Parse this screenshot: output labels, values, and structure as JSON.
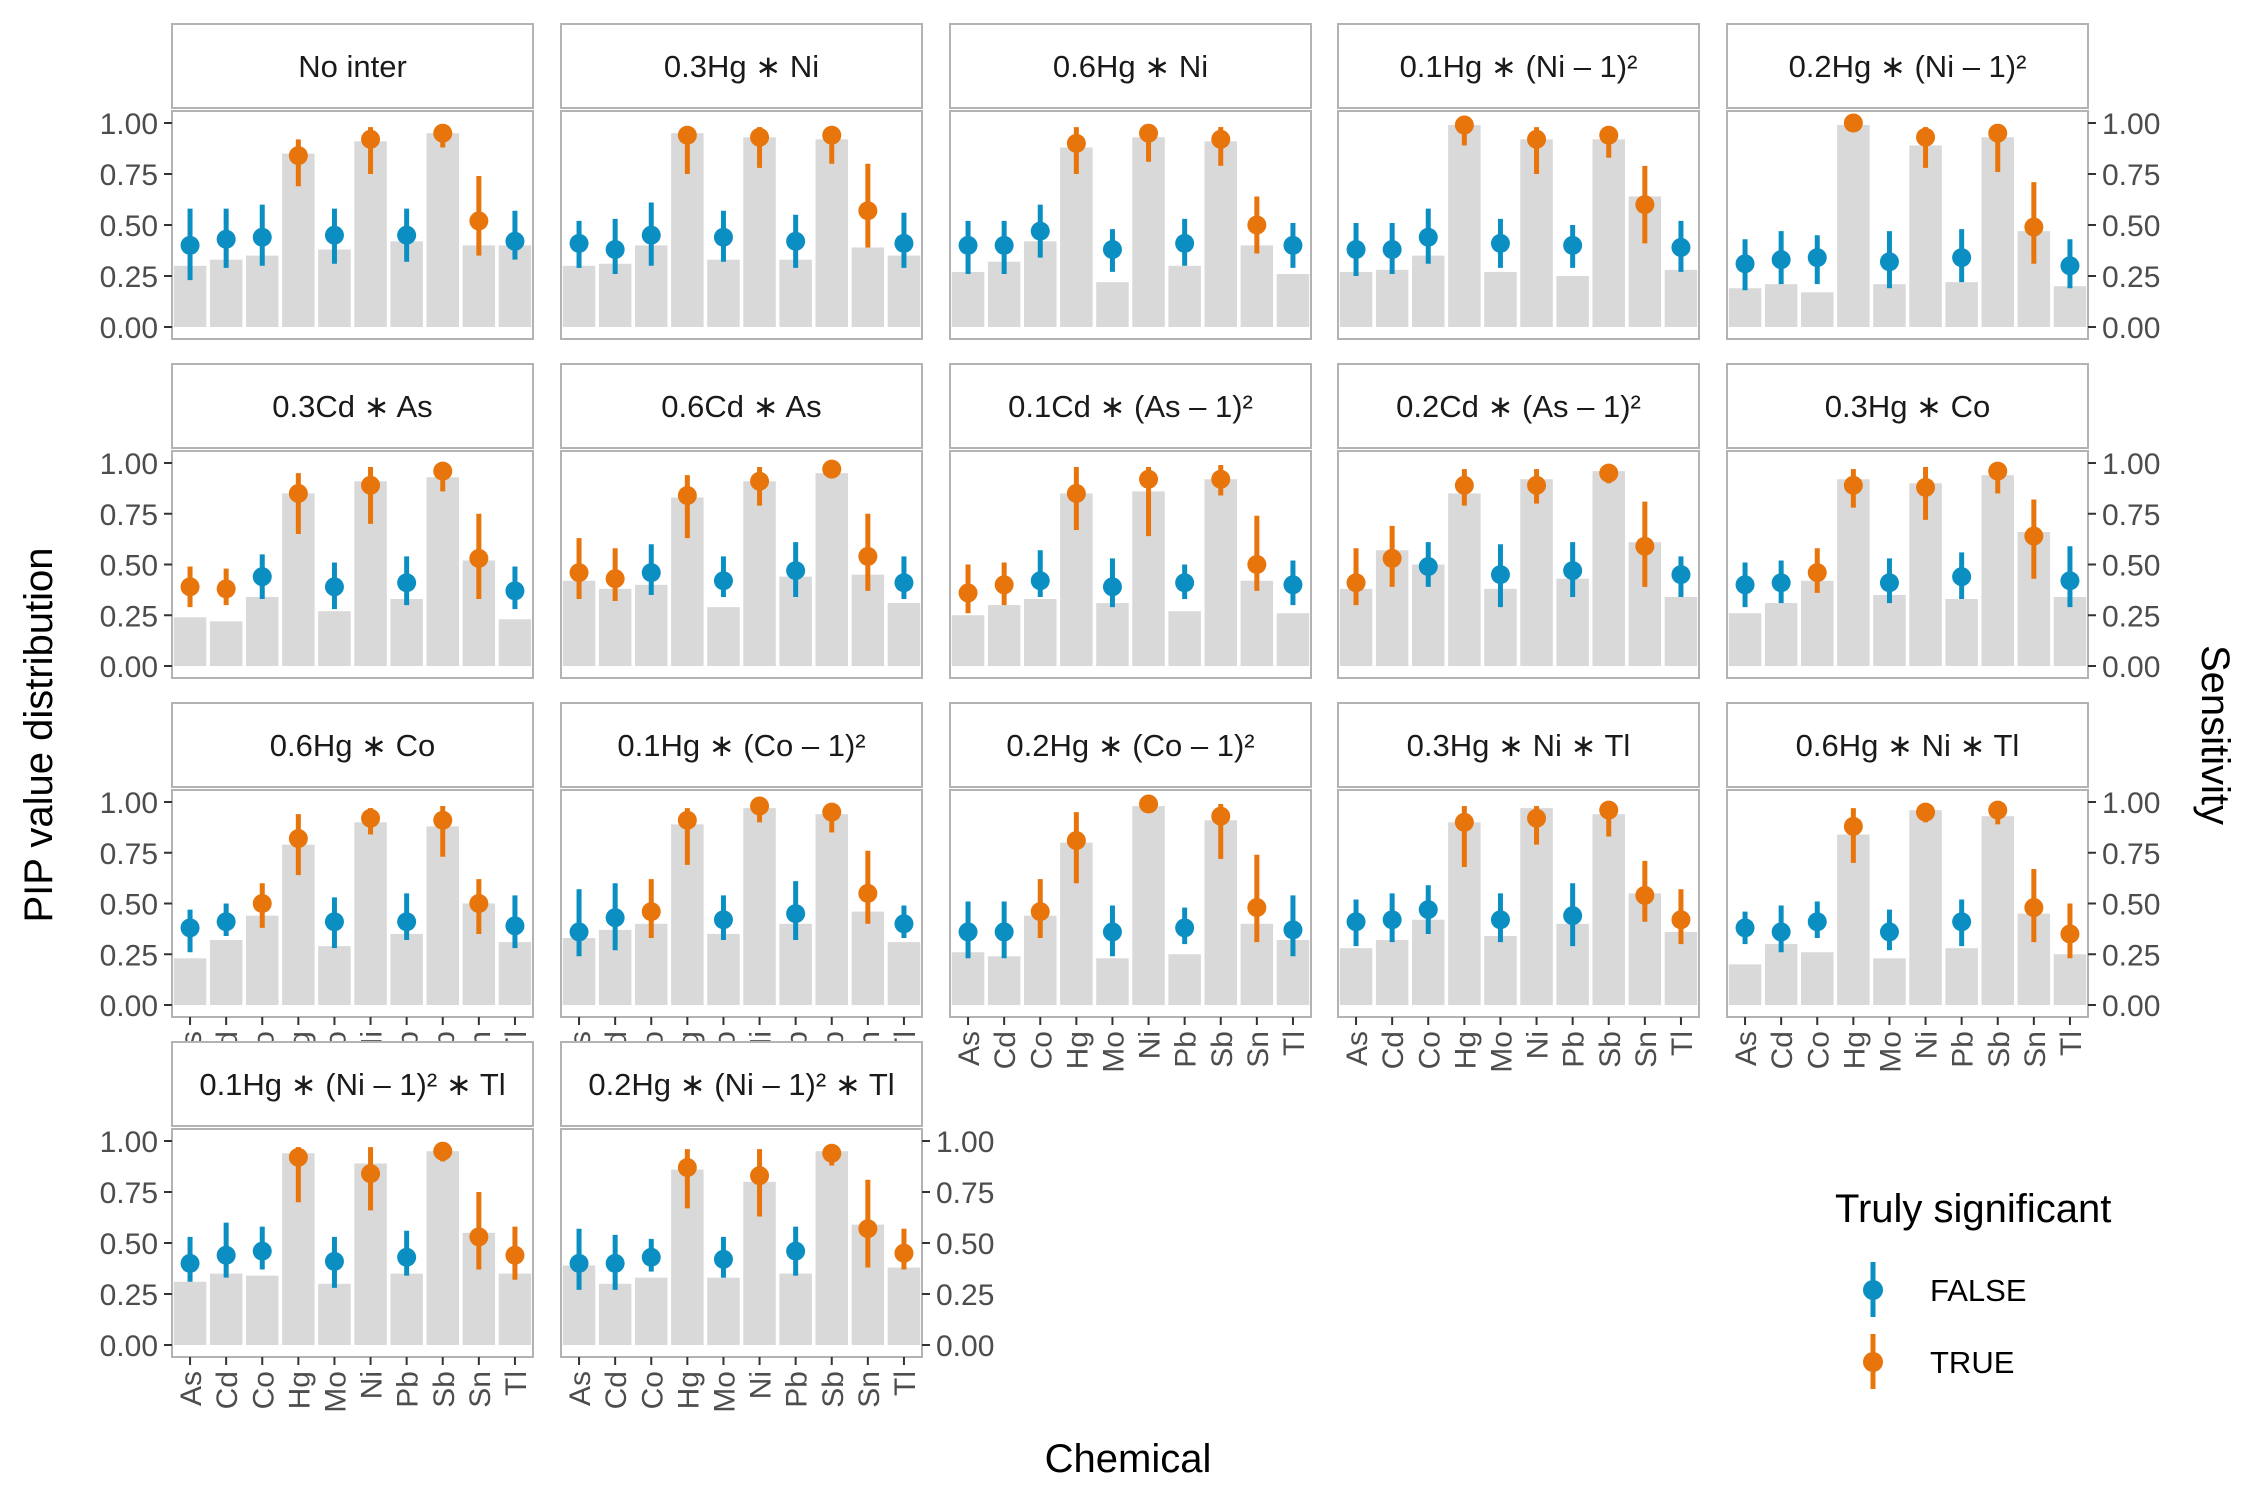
{
  "chart_data": {
    "type": "bar",
    "title": "",
    "xlabel": "Chemical",
    "ylabel": "PIP value distribution",
    "ylabel_right": "Sensitivity",
    "ylim": [
      0,
      1
    ],
    "yticks": [
      "0.00",
      "0.25",
      "0.50",
      "0.75",
      "1.00"
    ],
    "categories": [
      "As",
      "Cd",
      "Co",
      "Hg",
      "Mo",
      "Ni",
      "Pb",
      "Sb",
      "Sn",
      "Tl"
    ],
    "legend": {
      "title": "Truly significant",
      "position": "right",
      "entries": [
        {
          "label": "FALSE",
          "color": "#0b8fc3"
        },
        {
          "label": "TRUE",
          "color": "#e8740c"
        }
      ]
    },
    "colors": {
      "false": "#0b8fc3",
      "true": "#e8740c",
      "bar": "#d9d9d9",
      "strip_fill": "#ffffff",
      "panel_border": "#b3b3b3"
    },
    "panels": [
      {
        "label": "No inter",
        "sig": [
          0,
          0,
          0,
          1,
          0,
          1,
          0,
          1,
          1,
          0
        ],
        "sensitivity": [
          0.3,
          0.33,
          0.35,
          0.85,
          0.38,
          0.91,
          0.42,
          0.95,
          0.4,
          0.4
        ],
        "median": [
          0.4,
          0.43,
          0.44,
          0.84,
          0.45,
          0.92,
          0.45,
          0.95,
          0.52,
          0.42
        ],
        "low": [
          0.23,
          0.29,
          0.3,
          0.69,
          0.31,
          0.75,
          0.32,
          0.88,
          0.35,
          0.33
        ],
        "high": [
          0.58,
          0.58,
          0.6,
          0.92,
          0.58,
          0.98,
          0.58,
          0.98,
          0.74,
          0.57
        ]
      },
      {
        "label": "0.3Hg ∗ Ni",
        "sig": [
          0,
          0,
          0,
          1,
          0,
          1,
          0,
          1,
          1,
          0
        ],
        "sensitivity": [
          0.3,
          0.31,
          0.4,
          0.95,
          0.33,
          0.93,
          0.33,
          0.92,
          0.39,
          0.35
        ],
        "median": [
          0.41,
          0.38,
          0.45,
          0.94,
          0.44,
          0.93,
          0.42,
          0.94,
          0.57,
          0.41
        ],
        "low": [
          0.29,
          0.26,
          0.3,
          0.75,
          0.32,
          0.78,
          0.29,
          0.8,
          0.39,
          0.29
        ],
        "high": [
          0.52,
          0.53,
          0.61,
          0.98,
          0.57,
          0.98,
          0.55,
          0.98,
          0.8,
          0.56
        ]
      },
      {
        "label": "0.6Hg ∗ Ni",
        "sig": [
          0,
          0,
          0,
          1,
          0,
          1,
          0,
          1,
          1,
          0
        ],
        "sensitivity": [
          0.27,
          0.32,
          0.42,
          0.88,
          0.22,
          0.93,
          0.3,
          0.91,
          0.4,
          0.26
        ],
        "median": [
          0.4,
          0.4,
          0.47,
          0.9,
          0.38,
          0.95,
          0.41,
          0.92,
          0.5,
          0.4
        ],
        "low": [
          0.26,
          0.26,
          0.34,
          0.75,
          0.27,
          0.81,
          0.3,
          0.79,
          0.36,
          0.29
        ],
        "high": [
          0.52,
          0.52,
          0.6,
          0.98,
          0.48,
          0.98,
          0.53,
          0.98,
          0.64,
          0.51
        ]
      },
      {
        "label": "0.1Hg ∗ (Ni – 1)²",
        "sig": [
          0,
          0,
          0,
          1,
          0,
          1,
          0,
          1,
          1,
          0
        ],
        "sensitivity": [
          0.27,
          0.28,
          0.35,
          0.99,
          0.27,
          0.92,
          0.25,
          0.92,
          0.64,
          0.28
        ],
        "median": [
          0.38,
          0.38,
          0.44,
          0.99,
          0.41,
          0.92,
          0.4,
          0.94,
          0.6,
          0.39
        ],
        "low": [
          0.25,
          0.26,
          0.31,
          0.89,
          0.29,
          0.75,
          0.29,
          0.83,
          0.41,
          0.27
        ],
        "high": [
          0.51,
          0.51,
          0.58,
          1.0,
          0.53,
          0.98,
          0.5,
          0.98,
          0.79,
          0.52
        ]
      },
      {
        "label": "0.2Hg ∗ (Ni – 1)²",
        "sig": [
          0,
          0,
          0,
          1,
          0,
          1,
          0,
          1,
          1,
          0
        ],
        "sensitivity": [
          0.19,
          0.21,
          0.17,
          0.99,
          0.21,
          0.89,
          0.22,
          0.93,
          0.47,
          0.2
        ],
        "median": [
          0.31,
          0.33,
          0.34,
          1.0,
          0.32,
          0.93,
          0.34,
          0.95,
          0.49,
          0.3
        ],
        "low": [
          0.18,
          0.21,
          0.21,
          0.99,
          0.19,
          0.78,
          0.22,
          0.76,
          0.31,
          0.19
        ],
        "high": [
          0.43,
          0.47,
          0.45,
          1.0,
          0.47,
          0.98,
          0.48,
          0.98,
          0.71,
          0.43
        ]
      },
      {
        "label": "0.3Cd ∗ As",
        "sig": [
          1,
          1,
          0,
          1,
          0,
          1,
          0,
          1,
          1,
          0
        ],
        "sensitivity": [
          0.24,
          0.22,
          0.34,
          0.85,
          0.27,
          0.91,
          0.33,
          0.93,
          0.52,
          0.23
        ],
        "median": [
          0.39,
          0.38,
          0.44,
          0.85,
          0.39,
          0.89,
          0.41,
          0.96,
          0.53,
          0.37
        ],
        "low": [
          0.29,
          0.3,
          0.33,
          0.65,
          0.28,
          0.7,
          0.3,
          0.86,
          0.33,
          0.28
        ],
        "high": [
          0.49,
          0.48,
          0.55,
          0.95,
          0.51,
          0.98,
          0.54,
          0.99,
          0.75,
          0.49
        ]
      },
      {
        "label": "0.6Cd ∗ As",
        "sig": [
          1,
          1,
          0,
          1,
          0,
          1,
          0,
          1,
          1,
          0
        ],
        "sensitivity": [
          0.42,
          0.38,
          0.4,
          0.83,
          0.29,
          0.91,
          0.44,
          0.95,
          0.45,
          0.31
        ],
        "median": [
          0.46,
          0.43,
          0.46,
          0.84,
          0.42,
          0.91,
          0.47,
          0.97,
          0.54,
          0.41
        ],
        "low": [
          0.33,
          0.32,
          0.35,
          0.63,
          0.34,
          0.79,
          0.34,
          0.93,
          0.37,
          0.33
        ],
        "high": [
          0.63,
          0.58,
          0.6,
          0.94,
          0.54,
          0.98,
          0.61,
          0.99,
          0.75,
          0.54
        ]
      },
      {
        "label": "0.1Cd ∗ (As – 1)²",
        "sig": [
          1,
          1,
          0,
          1,
          0,
          1,
          0,
          1,
          1,
          0
        ],
        "sensitivity": [
          0.25,
          0.3,
          0.33,
          0.85,
          0.31,
          0.86,
          0.27,
          0.92,
          0.42,
          0.26
        ],
        "median": [
          0.36,
          0.4,
          0.42,
          0.85,
          0.39,
          0.92,
          0.41,
          0.92,
          0.5,
          0.4
        ],
        "low": [
          0.26,
          0.3,
          0.34,
          0.67,
          0.29,
          0.64,
          0.33,
          0.84,
          0.37,
          0.3
        ],
        "high": [
          0.5,
          0.51,
          0.57,
          0.98,
          0.53,
          0.98,
          0.5,
          0.99,
          0.74,
          0.52
        ]
      },
      {
        "label": "0.2Cd ∗ (As – 1)²",
        "sig": [
          1,
          1,
          0,
          1,
          0,
          1,
          0,
          1,
          1,
          0
        ],
        "sensitivity": [
          0.38,
          0.57,
          0.5,
          0.85,
          0.38,
          0.92,
          0.43,
          0.96,
          0.61,
          0.34
        ],
        "median": [
          0.41,
          0.53,
          0.49,
          0.89,
          0.45,
          0.89,
          0.47,
          0.95,
          0.59,
          0.45
        ],
        "low": [
          0.3,
          0.39,
          0.39,
          0.79,
          0.29,
          0.8,
          0.34,
          0.9,
          0.39,
          0.34
        ],
        "high": [
          0.58,
          0.69,
          0.61,
          0.97,
          0.6,
          0.97,
          0.61,
          0.98,
          0.81,
          0.54
        ]
      },
      {
        "label": "0.3Hg ∗ Co",
        "sig": [
          0,
          0,
          1,
          1,
          0,
          1,
          0,
          1,
          1,
          0
        ],
        "sensitivity": [
          0.26,
          0.31,
          0.42,
          0.92,
          0.35,
          0.9,
          0.33,
          0.94,
          0.66,
          0.34
        ],
        "median": [
          0.4,
          0.41,
          0.46,
          0.89,
          0.41,
          0.88,
          0.44,
          0.96,
          0.64,
          0.42
        ],
        "low": [
          0.29,
          0.31,
          0.36,
          0.78,
          0.31,
          0.72,
          0.33,
          0.85,
          0.43,
          0.29
        ],
        "high": [
          0.51,
          0.52,
          0.58,
          0.97,
          0.53,
          0.98,
          0.56,
          0.98,
          0.82,
          0.59
        ]
      },
      {
        "label": "0.6Hg ∗ Co",
        "sig": [
          0,
          0,
          1,
          1,
          0,
          1,
          0,
          1,
          1,
          0
        ],
        "sensitivity": [
          0.23,
          0.32,
          0.44,
          0.79,
          0.29,
          0.9,
          0.35,
          0.88,
          0.5,
          0.31
        ],
        "median": [
          0.38,
          0.41,
          0.5,
          0.82,
          0.41,
          0.92,
          0.41,
          0.91,
          0.5,
          0.39
        ],
        "low": [
          0.26,
          0.34,
          0.38,
          0.64,
          0.28,
          0.84,
          0.32,
          0.73,
          0.35,
          0.28
        ],
        "high": [
          0.47,
          0.5,
          0.6,
          0.94,
          0.53,
          0.97,
          0.55,
          0.98,
          0.62,
          0.54
        ]
      },
      {
        "label": "0.1Hg ∗ (Co – 1)²",
        "sig": [
          0,
          0,
          1,
          1,
          0,
          1,
          0,
          1,
          1,
          0
        ],
        "sensitivity": [
          0.33,
          0.37,
          0.4,
          0.89,
          0.35,
          0.97,
          0.4,
          0.94,
          0.46,
          0.31
        ],
        "median": [
          0.36,
          0.43,
          0.46,
          0.91,
          0.42,
          0.98,
          0.45,
          0.95,
          0.55,
          0.4
        ],
        "low": [
          0.24,
          0.27,
          0.33,
          0.69,
          0.32,
          0.9,
          0.32,
          0.85,
          0.4,
          0.33
        ],
        "high": [
          0.57,
          0.6,
          0.62,
          0.97,
          0.54,
          0.99,
          0.61,
          0.98,
          0.76,
          0.49
        ]
      },
      {
        "label": "0.2Hg ∗ (Co – 1)²",
        "sig": [
          0,
          0,
          1,
          1,
          0,
          1,
          0,
          1,
          1,
          0
        ],
        "sensitivity": [
          0.26,
          0.24,
          0.44,
          0.8,
          0.23,
          0.98,
          0.25,
          0.91,
          0.4,
          0.32
        ],
        "median": [
          0.36,
          0.36,
          0.46,
          0.81,
          0.36,
          0.99,
          0.38,
          0.93,
          0.48,
          0.37
        ],
        "low": [
          0.23,
          0.23,
          0.33,
          0.6,
          0.24,
          0.97,
          0.3,
          0.72,
          0.31,
          0.24
        ],
        "high": [
          0.51,
          0.51,
          0.62,
          0.95,
          0.49,
          1.0,
          0.48,
          0.99,
          0.74,
          0.54
        ]
      },
      {
        "label": "0.3Hg ∗ Ni ∗ Tl",
        "sig": [
          0,
          0,
          0,
          1,
          0,
          1,
          0,
          1,
          1,
          1
        ],
        "sensitivity": [
          0.28,
          0.32,
          0.42,
          0.9,
          0.34,
          0.97,
          0.4,
          0.94,
          0.55,
          0.36
        ],
        "median": [
          0.41,
          0.42,
          0.47,
          0.9,
          0.42,
          0.92,
          0.44,
          0.96,
          0.54,
          0.42
        ],
        "low": [
          0.29,
          0.31,
          0.35,
          0.68,
          0.31,
          0.79,
          0.29,
          0.83,
          0.41,
          0.3
        ],
        "high": [
          0.52,
          0.55,
          0.59,
          0.98,
          0.55,
          0.98,
          0.6,
          0.98,
          0.71,
          0.57
        ]
      },
      {
        "label": "0.6Hg ∗ Ni ∗ Tl",
        "sig": [
          0,
          0,
          0,
          1,
          0,
          1,
          0,
          1,
          1,
          1
        ],
        "sensitivity": [
          0.2,
          0.3,
          0.26,
          0.84,
          0.23,
          0.96,
          0.28,
          0.93,
          0.45,
          0.25
        ],
        "median": [
          0.38,
          0.36,
          0.41,
          0.88,
          0.36,
          0.95,
          0.41,
          0.96,
          0.48,
          0.35
        ],
        "low": [
          0.3,
          0.26,
          0.33,
          0.7,
          0.27,
          0.9,
          0.29,
          0.89,
          0.31,
          0.23
        ],
        "high": [
          0.46,
          0.49,
          0.51,
          0.97,
          0.47,
          0.98,
          0.52,
          0.98,
          0.67,
          0.5
        ]
      },
      {
        "label": "0.1Hg ∗ (Ni – 1)² ∗ Tl",
        "sig": [
          0,
          0,
          0,
          1,
          0,
          1,
          0,
          1,
          1,
          1
        ],
        "sensitivity": [
          0.31,
          0.35,
          0.34,
          0.94,
          0.3,
          0.89,
          0.35,
          0.95,
          0.55,
          0.35
        ],
        "median": [
          0.4,
          0.44,
          0.46,
          0.92,
          0.41,
          0.84,
          0.43,
          0.95,
          0.53,
          0.44
        ],
        "low": [
          0.31,
          0.33,
          0.37,
          0.7,
          0.28,
          0.66,
          0.34,
          0.9,
          0.37,
          0.32
        ],
        "high": [
          0.53,
          0.6,
          0.58,
          0.97,
          0.53,
          0.97,
          0.56,
          0.99,
          0.75,
          0.58
        ]
      },
      {
        "label": "0.2Hg ∗ (Ni – 1)² ∗ Tl",
        "sig": [
          0,
          0,
          0,
          1,
          0,
          1,
          0,
          1,
          1,
          1
        ],
        "sensitivity": [
          0.39,
          0.3,
          0.33,
          0.86,
          0.33,
          0.8,
          0.35,
          0.95,
          0.59,
          0.38
        ],
        "median": [
          0.4,
          0.4,
          0.43,
          0.87,
          0.42,
          0.83,
          0.46,
          0.94,
          0.57,
          0.45
        ],
        "low": [
          0.27,
          0.27,
          0.36,
          0.67,
          0.33,
          0.63,
          0.34,
          0.88,
          0.38,
          0.37
        ],
        "high": [
          0.57,
          0.54,
          0.52,
          0.96,
          0.53,
          0.96,
          0.58,
          0.98,
          0.81,
          0.57
        ]
      }
    ]
  }
}
